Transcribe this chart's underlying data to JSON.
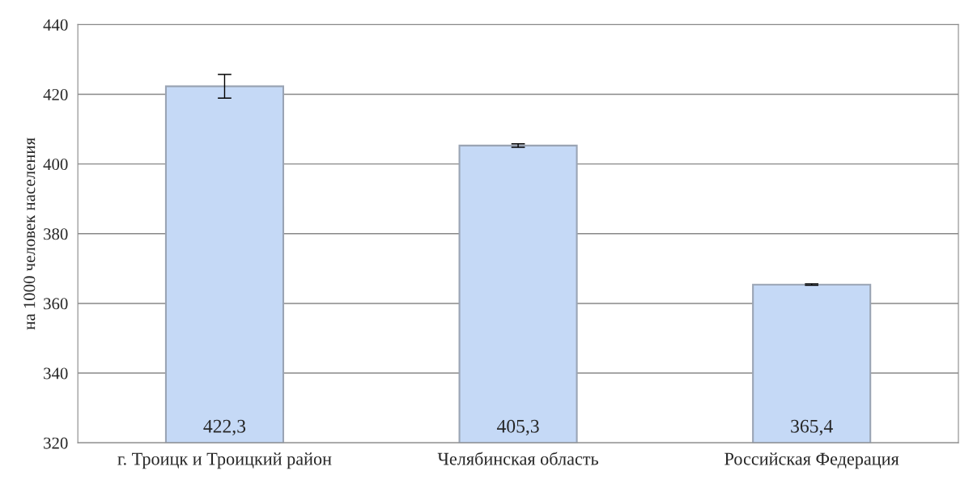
{
  "chart_data": {
    "type": "bar",
    "ylabel": "на 1000 человек населения",
    "categories": [
      "г. Троицк и Троицкий район",
      "Челябинская область",
      "Российская Федерация"
    ],
    "values": [
      422.3,
      405.3,
      365.4
    ],
    "color": "#c5d9f6",
    "errors": [
      3.4,
      0.5,
      0.2
    ],
    "value_labels": [
      "422,3",
      "405,3",
      "365,4"
    ],
    "ylim": [
      320,
      440
    ],
    "yticks": [
      320,
      340,
      360,
      380,
      400,
      420,
      440
    ],
    "grid": "y"
  }
}
